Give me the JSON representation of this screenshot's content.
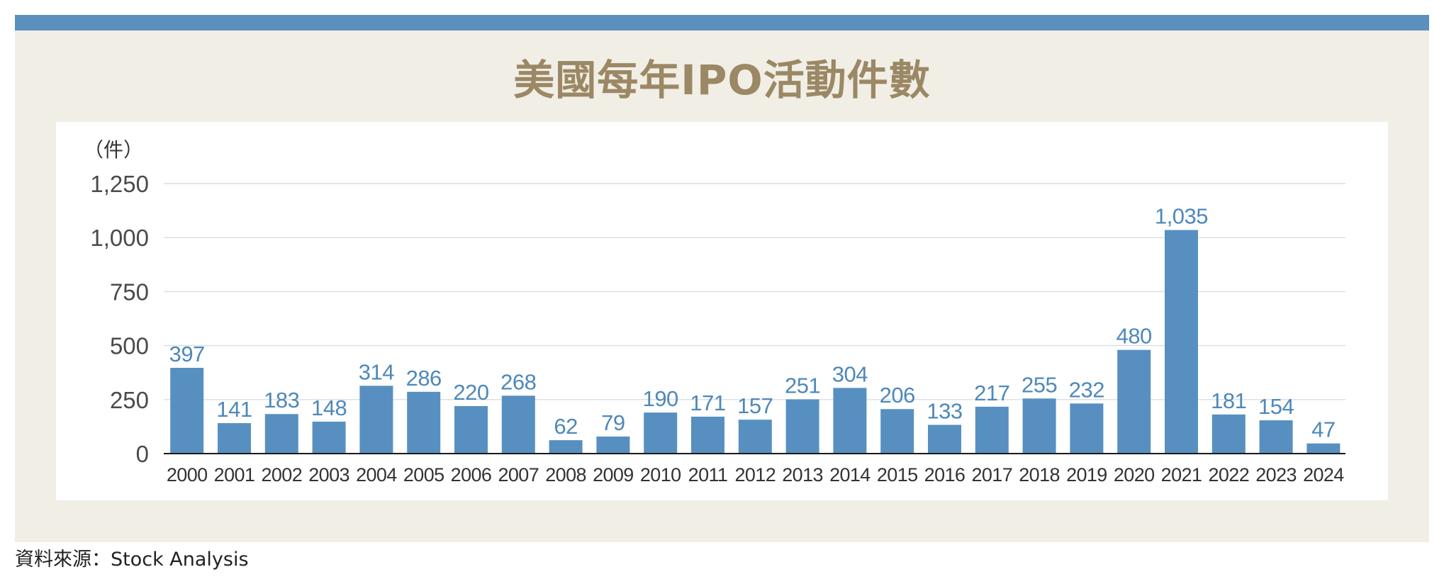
{
  "chart_data": {
    "type": "bar",
    "title": "美國每年IPO活動件數",
    "ylabel": "（件）",
    "categories": [
      "2000",
      "2001",
      "2002",
      "2003",
      "2004",
      "2005",
      "2006",
      "2007",
      "2008",
      "2009",
      "2010",
      "2011",
      "2012",
      "2013",
      "2014",
      "2015",
      "2016",
      "2017",
      "2018",
      "2019",
      "2020",
      "2021",
      "2022",
      "2023",
      "2024"
    ],
    "values": [
      397,
      141,
      183,
      148,
      314,
      286,
      220,
      268,
      62,
      79,
      190,
      171,
      157,
      251,
      304,
      206,
      133,
      217,
      255,
      232,
      480,
      1035,
      181,
      154,
      47
    ],
    "data_labels": [
      "397",
      "141",
      "183",
      "148",
      "314",
      "286",
      "220",
      "268",
      "62",
      "79",
      "190",
      "171",
      "157",
      "251",
      "304",
      "206",
      "133",
      "217",
      "255",
      "232",
      "480",
      "1,035",
      "181",
      "154",
      "47"
    ],
    "ylim": [
      0,
      1250
    ],
    "yticks": [
      0,
      250,
      500,
      750,
      1000,
      1250
    ],
    "ytick_labels": [
      "0",
      "250",
      "500",
      "750",
      "1,000",
      "1,250"
    ],
    "grid": true
  },
  "footer": {
    "source": "資料來源：Stock Analysis"
  },
  "colors": {
    "accent_bar": "#5b8fbe",
    "frame_background": "#f1eee6",
    "title": "#9b8864",
    "bar": "#5790c0",
    "data_label": "#4e88ba"
  }
}
